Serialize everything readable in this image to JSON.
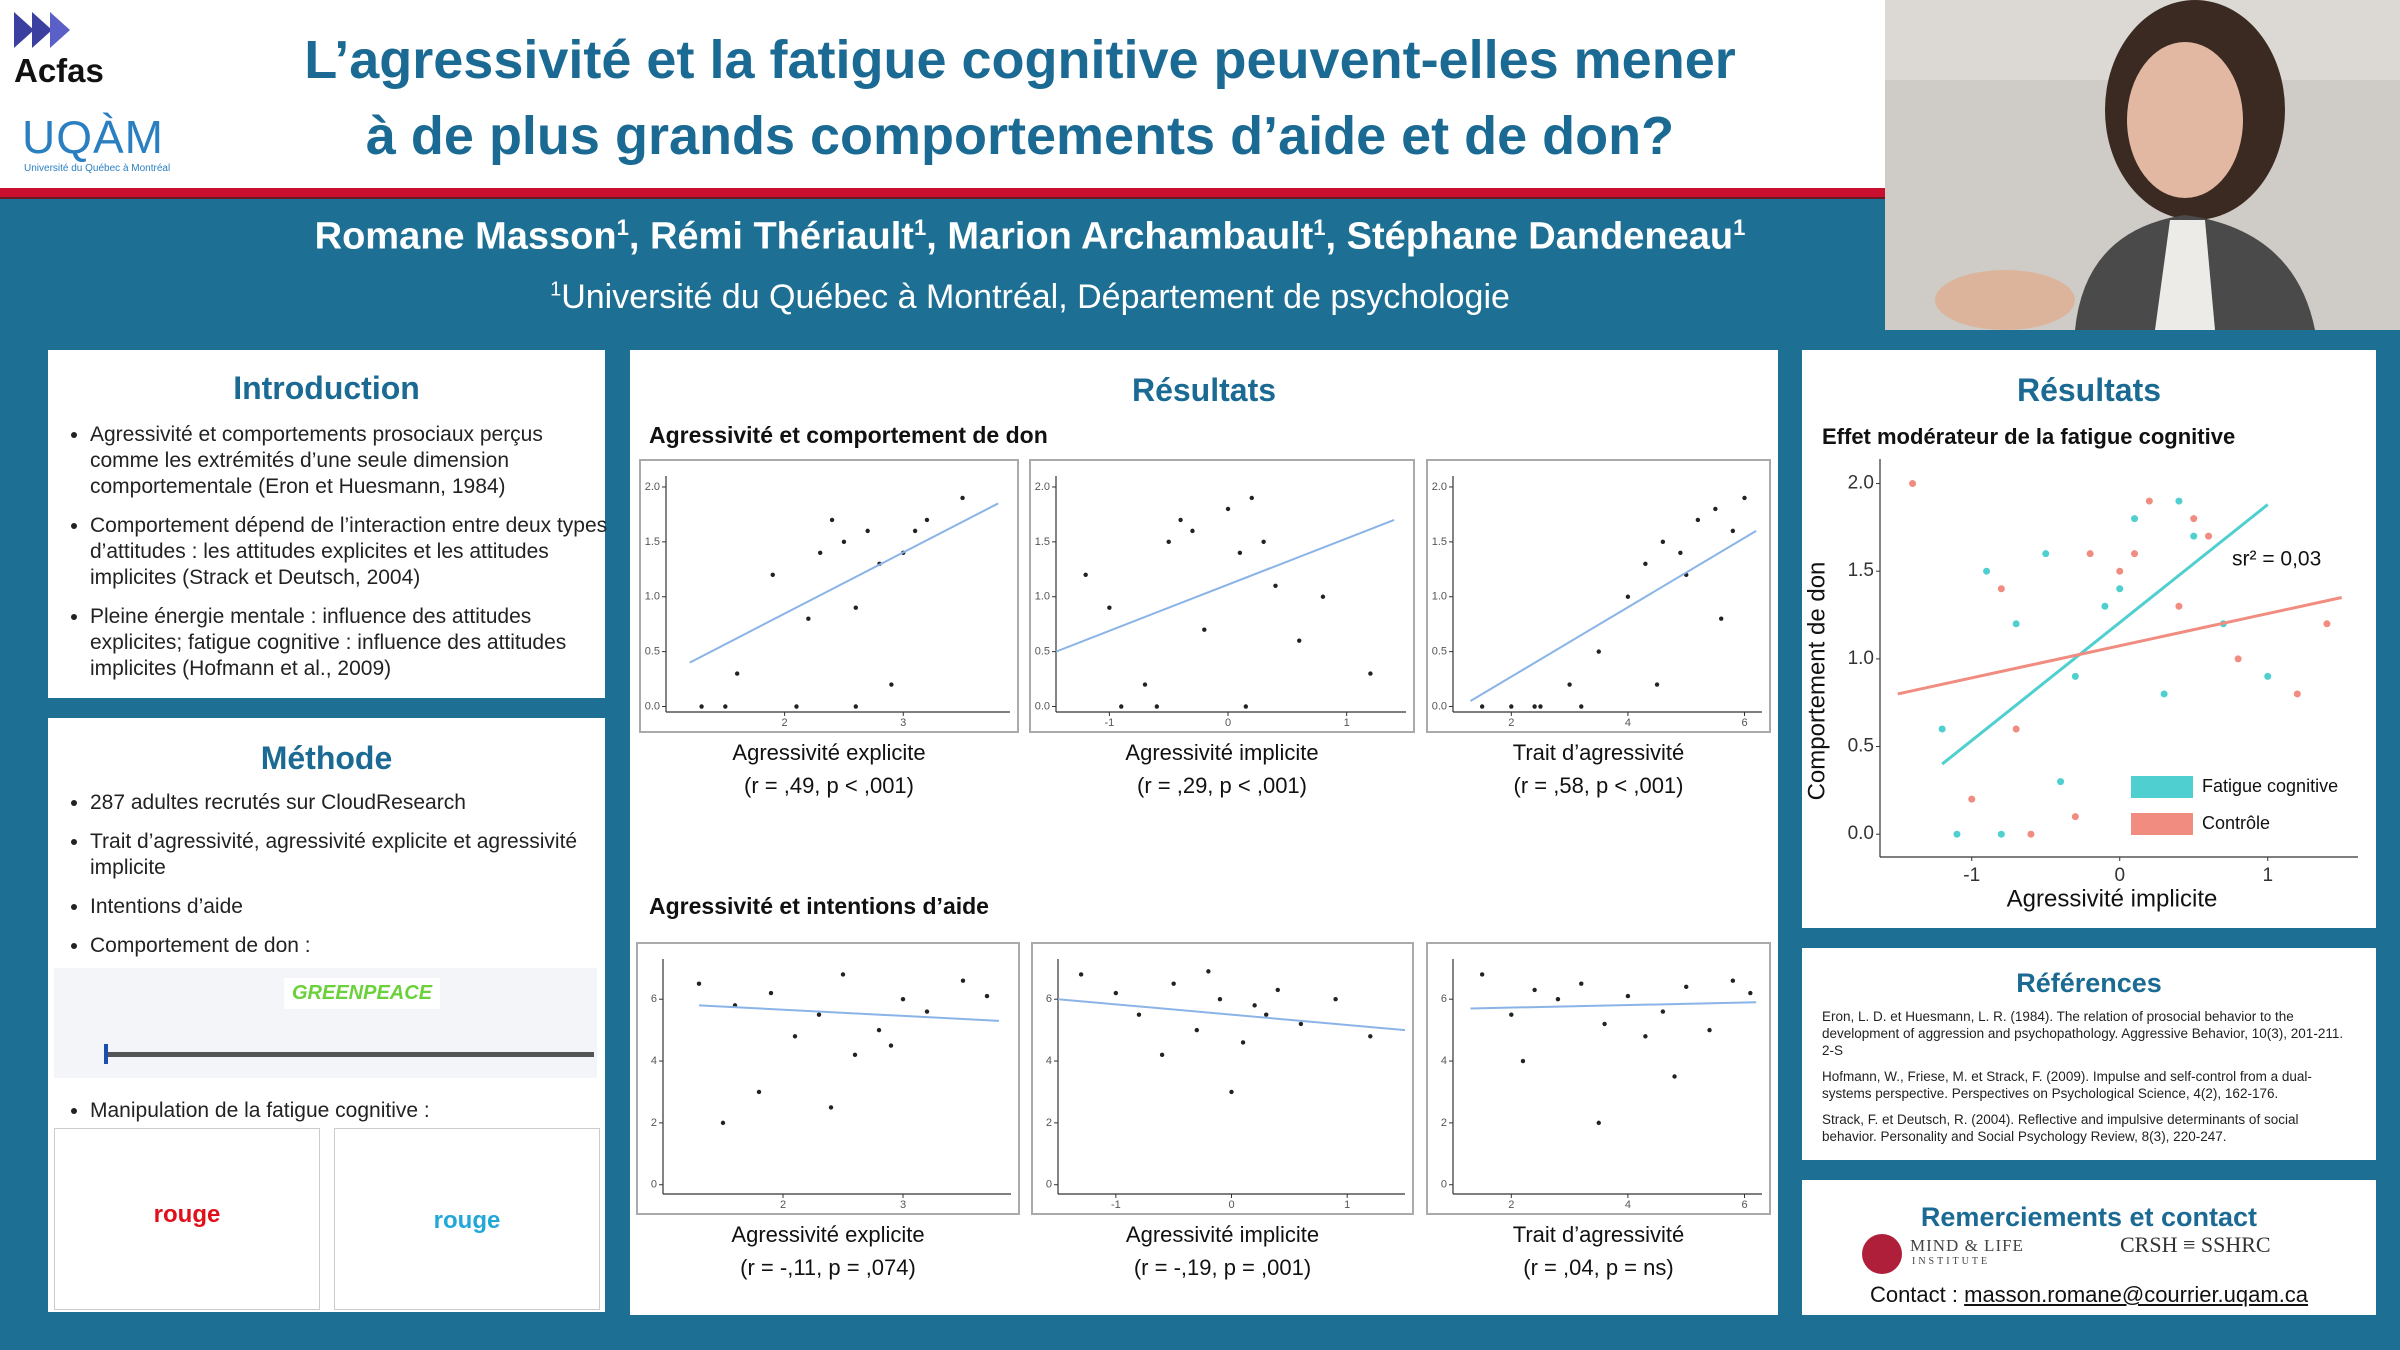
{
  "header": {
    "title_lines": [
      "L’agressivité et la fatigue cognitive peuvent-elles mener",
      "à de plus grands comportements d’aide et de don?"
    ],
    "logo_acfas": "Acfas",
    "logo_uqam": "UQÀM",
    "logo_uqam_sub": "Université du Québec à Montréal"
  },
  "authors": {
    "names": [
      {
        "name": "Romane Masson",
        "sup": "1"
      },
      {
        "name": "Rémi Thériault",
        "sup": "1"
      },
      {
        "name": "Marion Archambault",
        "sup": "1"
      },
      {
        "name": "Stéphane Dandeneau",
        "sup": "1"
      }
    ],
    "affiliation": {
      "sup": "1",
      "text": "Université du Québec à Montréal, Département de psychologie"
    }
  },
  "introduction": {
    "title": "Introduction",
    "bullets": [
      "Agressivité et comportements prosociaux perçus comme les extrémités d’une seule dimension comportementale (Eron et Huesmann, 1984)",
      "Comportement dépend de l’interaction entre deux types d’attitudes : les attitudes explicites et les attitudes implicites (Strack et Deutsch, 2004)",
      "Pleine énergie mentale : influence des attitudes explicites; fatigue cognitive : influence des attitudes implicites (Hofmann et al., 2009)"
    ]
  },
  "methode": {
    "title": "Méthode",
    "bullets": [
      "287 adultes recrutés sur CloudResearch",
      "Trait d’agressivité, agressivité explicite et agressivité implicite",
      "Intentions d’aide",
      "Comportement de don :"
    ],
    "greenpeace": "GREENPEACE",
    "last_bullet": "Manipulation de la fatigue cognitive :",
    "stroop_words": [
      "rouge",
      "rouge"
    ]
  },
  "resultats": {
    "title": "Résultats",
    "sections": [
      {
        "subtitle": "Agressivité et comportement de don",
        "plots": [
          {
            "xlabel": "Agressivité explicite",
            "stat": "(r = ,49, p < ,001)",
            "xlim": [
              1,
              3.9
            ],
            "ylim": [
              -0.05,
              2.1
            ],
            "xticks": [
              2,
              3
            ],
            "yticks": [
              {
                "value": 0,
                "label": "0.0"
              },
              0.5,
              {
                "value": 1,
                "label": "1.0"
              },
              1.5,
              {
                "value": 2,
                "label": "2.0"
              }
            ],
            "fit": {
              "x": [
                1.2,
                3.8
              ],
              "y": [
                0.4,
                1.85
              ]
            },
            "points": {
              "x": [
                1.3,
                1.6,
                1.9,
                2.1,
                2.3,
                2.4,
                2.5,
                2.6,
                2.7,
                2.8,
                2.9,
                3.0,
                3.2,
                3.5,
                1.5,
                2.2,
                2.6,
                3.1
              ],
              "y": [
                0,
                0.3,
                1.2,
                0,
                1.4,
                1.7,
                1.5,
                0.9,
                1.6,
                1.3,
                0.2,
                1.4,
                1.7,
                1.9,
                0,
                0.8,
                0,
                1.6
              ]
            }
          },
          {
            "xlabel": "Agressivité implicite",
            "stat": "(r = ,29, p < ,001)",
            "xlim": [
              -1.45,
              1.5
            ],
            "ylim": [
              -0.05,
              2.1
            ],
            "xticks": [
              -1,
              0,
              1
            ],
            "yticks": [
              {
                "value": 0,
                "label": "0.0"
              },
              0.5,
              {
                "value": 1,
                "label": "1.0"
              },
              1.5,
              {
                "value": 2,
                "label": "2.0"
              }
            ],
            "fit": {
              "x": [
                -1.45,
                1.4
              ],
              "y": [
                0.5,
                1.7
              ]
            },
            "points": {
              "x": [
                -1.2,
                -0.9,
                -0.7,
                -0.5,
                -0.3,
                -0.2,
                0,
                0.1,
                0.2,
                0.4,
                0.6,
                -0.6,
                -0.4,
                0.15,
                0.3,
                -1.0,
                0.8,
                1.2
              ],
              "y": [
                1.2,
                0,
                0.2,
                1.5,
                1.6,
                0.7,
                1.8,
                1.4,
                1.9,
                1.1,
                0.6,
                0,
                1.7,
                0,
                1.5,
                0.9,
                1.0,
                0.3
              ]
            }
          },
          {
            "xlabel": "Trait d’agressivité",
            "stat": "(r = ,58, p < ,001)",
            "xlim": [
              1,
              6.3
            ],
            "ylim": [
              -0.05,
              2.1
            ],
            "xticks": [
              2,
              4,
              6
            ],
            "yticks": [
              {
                "value": 0,
                "label": "0.0"
              },
              0.5,
              {
                "value": 1,
                "label": "1.0"
              },
              1.5,
              {
                "value": 2,
                "label": "2.0"
              }
            ],
            "fit": {
              "x": [
                1.3,
                6.2
              ],
              "y": [
                0.05,
                1.6
              ]
            },
            "points": {
              "x": [
                1.5,
                2.0,
                2.5,
                3.0,
                3.5,
                4.0,
                4.3,
                4.6,
                4.9,
                5.2,
                5.5,
                5.8,
                6.0,
                3.2,
                4.5,
                5.0,
                5.6,
                2.4
              ],
              "y": [
                0,
                0,
                0,
                0.2,
                0.5,
                1.0,
                1.3,
                1.5,
                1.4,
                1.7,
                1.8,
                1.6,
                1.9,
                0,
                0.2,
                1.2,
                0.8,
                0
              ]
            }
          }
        ]
      },
      {
        "subtitle": "Agressivité et intentions d’aide",
        "plots": [
          {
            "xlabel": "Agressivité explicite",
            "stat": "(r = -,11, p = ,074)",
            "xlim": [
              1,
              3.9
            ],
            "ylim": [
              -0.3,
              7.3
            ],
            "xticks": [
              2,
              3
            ],
            "yticks": [
              0,
              2,
              4,
              6
            ],
            "fit": {
              "x": [
                1.3,
                3.8
              ],
              "y": [
                5.8,
                5.3
              ]
            },
            "points": {
              "x": [
                1.3,
                1.6,
                1.9,
                2.1,
                2.3,
                2.5,
                2.6,
                2.8,
                3.0,
                3.2,
                3.5,
                3.7,
                1.8,
                2.4,
                2.9,
                1.5
              ],
              "y": [
                6.5,
                5.8,
                6.2,
                4.8,
                5.5,
                6.8,
                4.2,
                5.0,
                6.0,
                5.6,
                6.6,
                6.1,
                3.0,
                2.5,
                4.5,
                2.0
              ]
            }
          },
          {
            "xlabel": "Agressivité implicite",
            "stat": "(r = -,19, p = ,001)",
            "xlim": [
              -1.5,
              1.5
            ],
            "ylim": [
              -0.3,
              7.3
            ],
            "xticks": [
              -1,
              0,
              1
            ],
            "yticks": [
              0,
              2,
              4,
              6
            ],
            "fit": {
              "x": [
                -1.5,
                1.5
              ],
              "y": [
                6.0,
                5.0
              ]
            },
            "points": {
              "x": [
                -1.3,
                -1.0,
                -0.8,
                -0.5,
                -0.3,
                -0.1,
                0.1,
                0.2,
                0.4,
                0.6,
                0.9,
                1.2,
                -0.6,
                0.0,
                0.3,
                -0.2
              ],
              "y": [
                6.8,
                6.2,
                5.5,
                6.5,
                5.0,
                6.0,
                4.6,
                5.8,
                6.3,
                5.2,
                6.0,
                4.8,
                4.2,
                3.0,
                5.5,
                6.9
              ]
            }
          },
          {
            "xlabel": "Trait d’agressivité",
            "stat": "(r = ,04, p = ns)",
            "xlim": [
              1,
              6.3
            ],
            "ylim": [
              -0.3,
              7.3
            ],
            "xticks": [
              2,
              4,
              6
            ],
            "yticks": [
              0,
              2,
              4,
              6
            ],
            "fit": {
              "x": [
                1.3,
                6.2
              ],
              "y": [
                5.7,
                5.9
              ]
            },
            "points": {
              "x": [
                1.5,
                2.0,
                2.4,
                2.8,
                3.2,
                3.6,
                4.0,
                4.3,
                4.6,
                5.0,
                5.4,
                5.8,
                6.1,
                3.5,
                4.8,
                2.2
              ],
              "y": [
                6.8,
                5.5,
                6.3,
                6.0,
                6.5,
                5.2,
                6.1,
                4.8,
                5.6,
                6.4,
                5.0,
                6.6,
                6.2,
                2.0,
                3.5,
                4.0
              ]
            }
          }
        ]
      }
    ]
  },
  "right": {
    "title": "Résultats",
    "subtitle": "Effet modérateur de la fatigue cognitive",
    "chart": {
      "xlabel": "Agressivité implicite",
      "ylabel": "Comportement de don",
      "annotation": "sr² = 0,03",
      "xlim": [
        -1.62,
        1.61
      ],
      "ylim": [
        -0.13,
        2.14
      ],
      "xticks": [
        -1,
        0,
        1
      ],
      "yticks": [
        {
          "value": 0,
          "label": "0.0"
        },
        0.5,
        {
          "value": 1,
          "label": "1.0"
        },
        1.5,
        {
          "value": 2,
          "label": "2.0"
        }
      ],
      "series": [
        {
          "name": "Fatigue cognitive",
          "color": "#4fcfcf",
          "x": [
            -1.1,
            -0.9,
            -0.7,
            -0.5,
            -0.3,
            -0.1,
            0.1,
            0.3,
            0.5,
            0.7,
            -0.8,
            -0.4,
            0.0,
            0.4,
            1.0,
            -1.2
          ],
          "y": [
            0,
            1.5,
            1.2,
            1.6,
            0.9,
            1.3,
            1.8,
            0.8,
            1.7,
            1.2,
            0,
            0.3,
            1.4,
            1.9,
            0.9,
            0.6
          ],
          "fit": {
            "x": [
              -1.2,
              1.0
            ],
            "y": [
              0.4,
              1.88
            ]
          }
        },
        {
          "name": "Contrôle",
          "color": "#f08c80",
          "x": [
            -1.4,
            -1.0,
            -0.8,
            -0.6,
            -0.2,
            0,
            0.2,
            0.4,
            0.6,
            0.8,
            1.2,
            1.4,
            -0.3,
            0.1,
            -0.7,
            0.5
          ],
          "y": [
            2.0,
            0.2,
            1.4,
            0,
            1.6,
            1.5,
            1.9,
            1.3,
            1.7,
            1.0,
            0.8,
            1.2,
            0.1,
            1.6,
            0.6,
            1.8
          ],
          "fit": {
            "x": [
              -1.5,
              1.5
            ],
            "y": [
              0.8,
              1.35
            ]
          }
        }
      ]
    }
  },
  "references": {
    "title": "Références",
    "items": [
      "Eron, L. D. et Huesmann, L. R. (1984). The relation of prosocial behavior to the development of aggression and psychopathology. Aggressive Behavior, 10(3), 201-211. 2-S",
      "Hofmann, W., Friese, M. et Strack, F. (2009). Impulse and self-control from a dual-systems perspective. Perspectives on Psychological Science, 4(2), 162-176.",
      "Strack, F. et Deutsch, R. (2004). Reflective and impulsive determinants of social behavior. Personality and Social Psychology Review, 8(3), 220-247."
    ]
  },
  "contact": {
    "title": "Remerciements et contact",
    "logo_mindlife": "MIND & LIFE",
    "logo_mindlife_sub": "INSTITUTE",
    "logo_crsh": "CRSH ≡ SSHRC",
    "label": "Contact :",
    "email": "masson.romane@courrier.uqam.ca"
  }
}
